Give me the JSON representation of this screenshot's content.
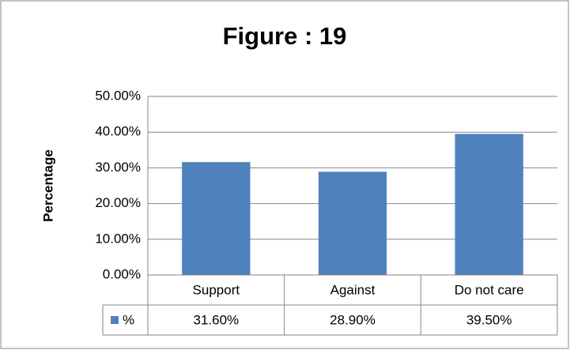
{
  "chart_data": {
    "type": "bar",
    "title": "Figure : 19",
    "y_label": "Percentage",
    "categories": [
      "Support",
      "Against",
      "Do not care"
    ],
    "series": [
      {
        "name": "%",
        "color": "#4f81bd",
        "values": [
          31.6,
          28.9,
          39.5
        ],
        "value_labels": [
          "31.60%",
          "28.90%",
          "39.50%"
        ]
      }
    ],
    "ylim": [
      0,
      50
    ],
    "yticks": [
      {
        "value": 0,
        "label": "0.00%"
      },
      {
        "value": 10,
        "label": "10.00%"
      },
      {
        "value": 20,
        "label": "20.00%"
      },
      {
        "value": 30,
        "label": "30.00%"
      },
      {
        "value": 40,
        "label": "40.00%"
      },
      {
        "value": 50,
        "label": "50.00%"
      }
    ],
    "grid": true,
    "data_table": true
  }
}
